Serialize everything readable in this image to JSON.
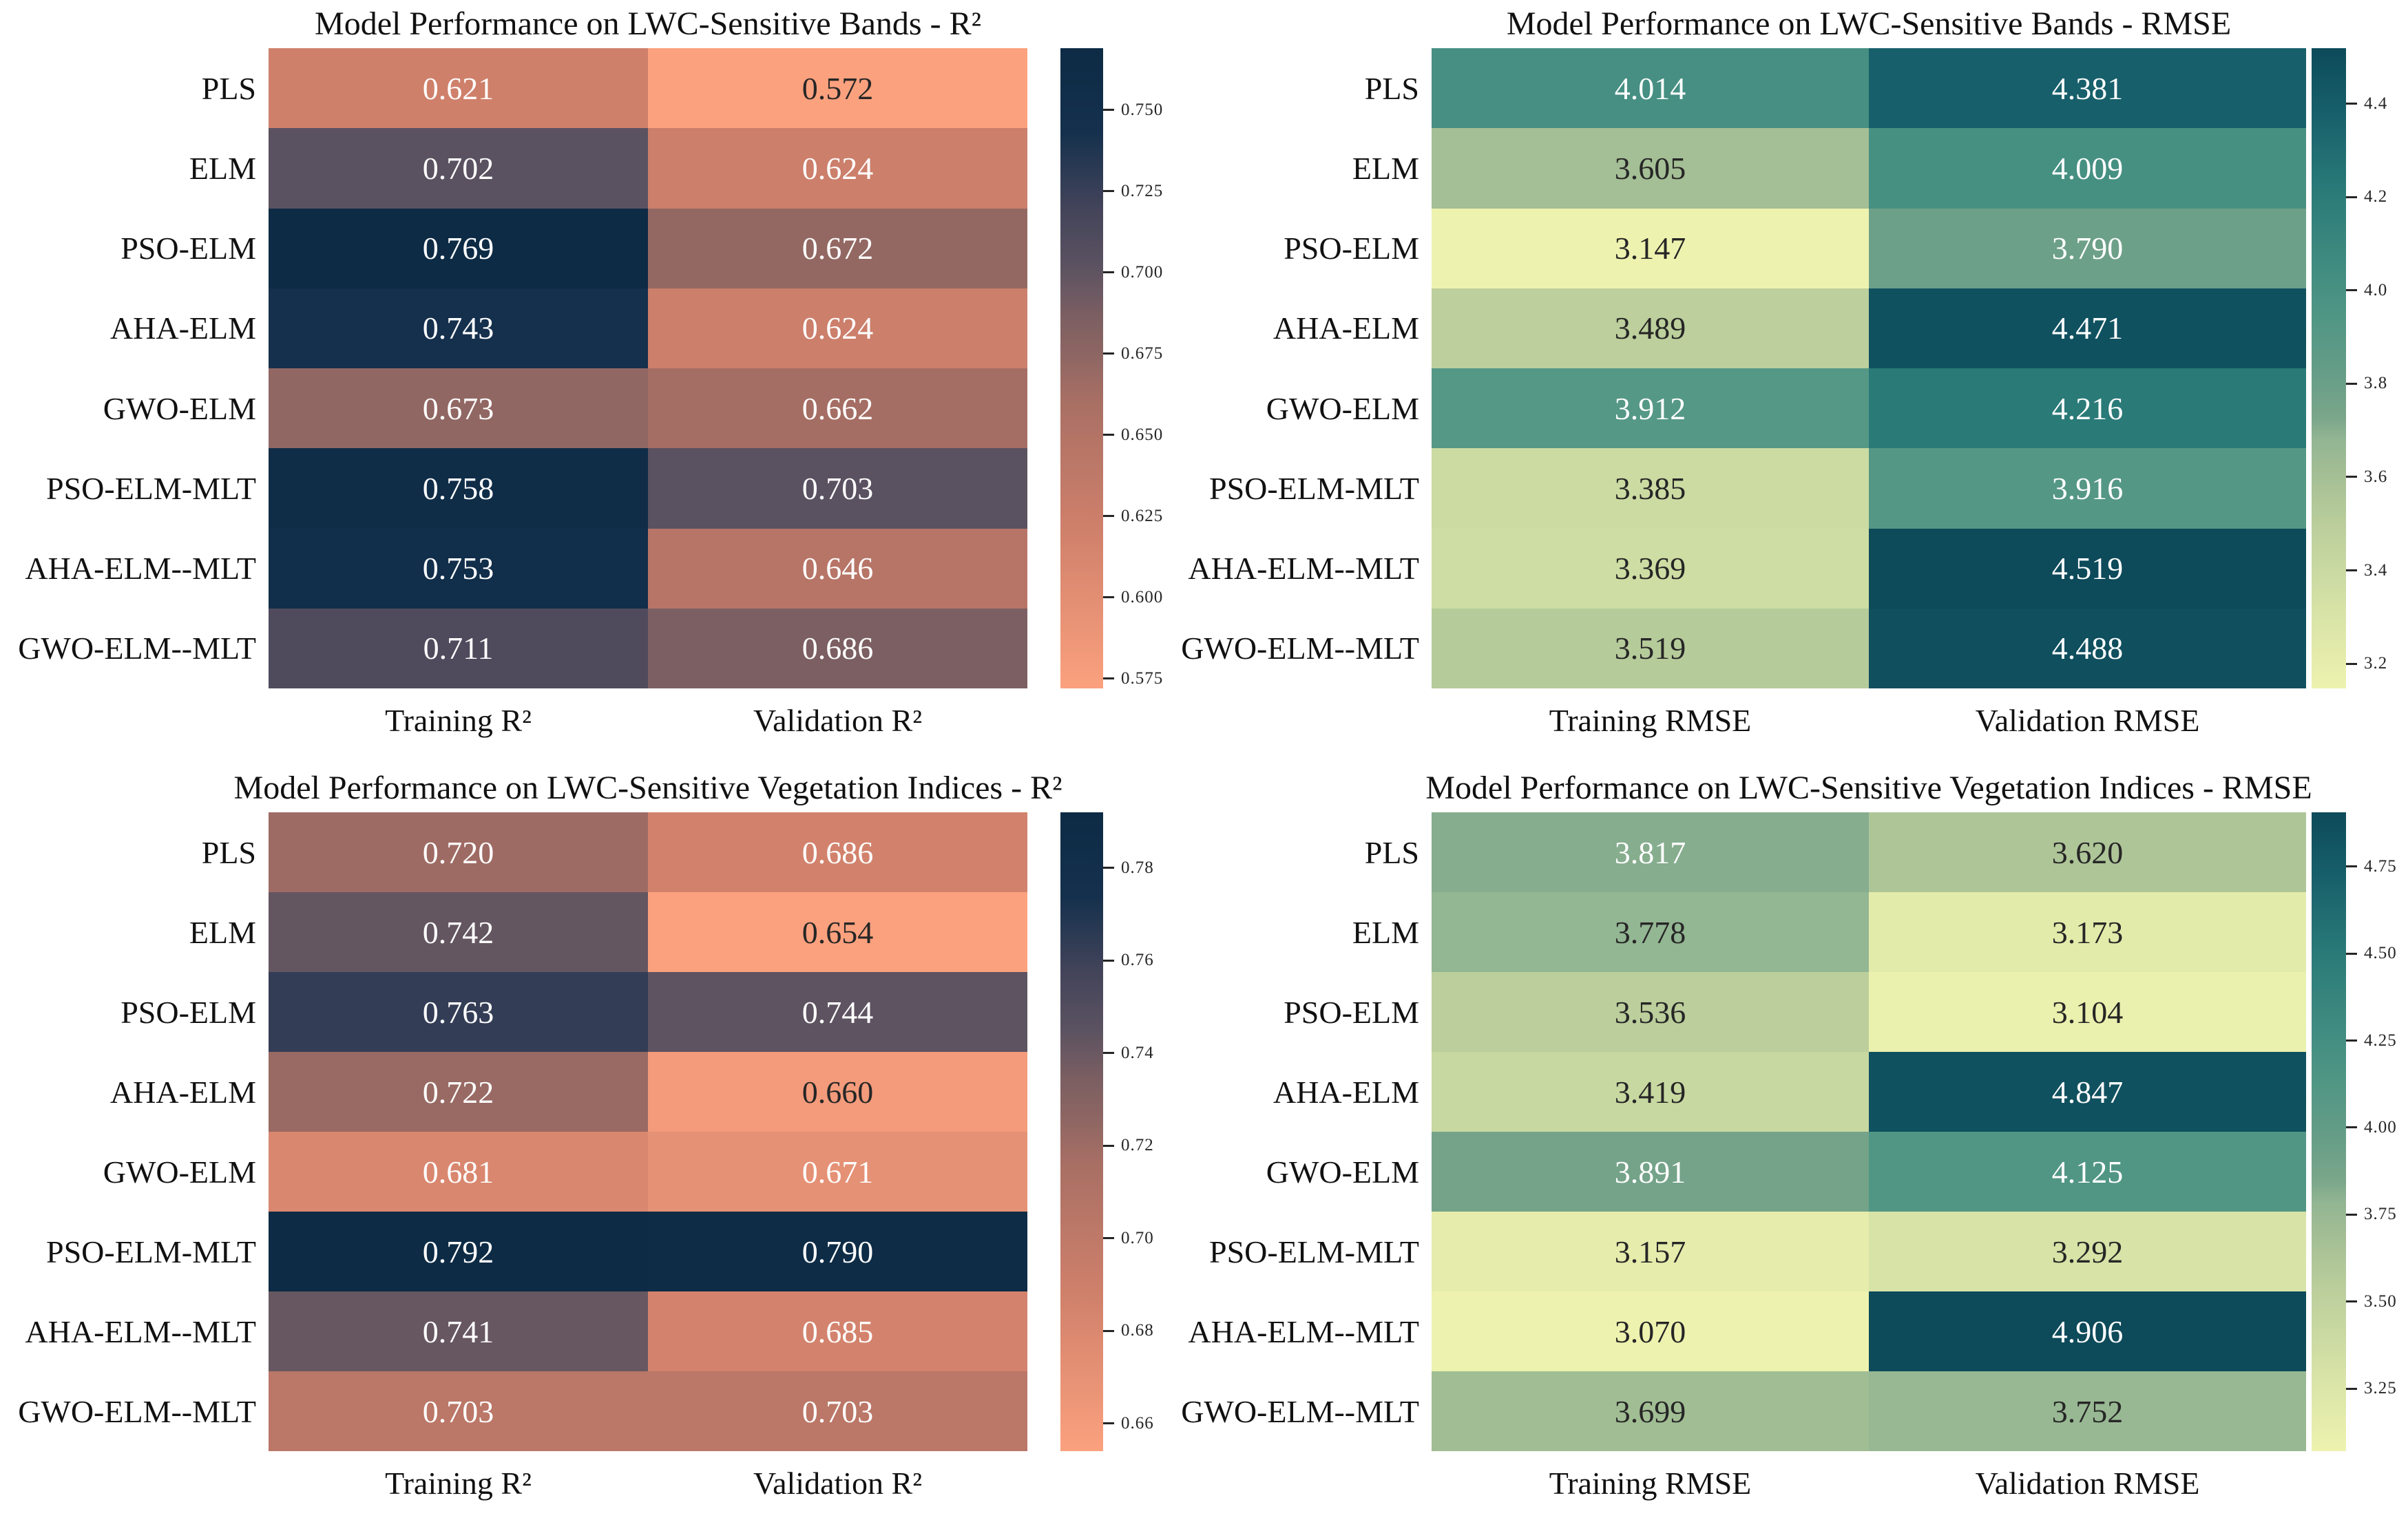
{
  "figure": {
    "background": "#FFFFFF",
    "text_color": "#111111"
  },
  "annotation": {
    "light_text": "#FFFFFF",
    "dark_text": "#262626",
    "luminance_threshold": 0.408
  },
  "colormaps": {
    "salmon_to_navy": [
      [
        0.0,
        "#FBA17E"
      ],
      [
        0.25,
        "#CF806B"
      ],
      [
        0.45,
        "#A86F64"
      ],
      [
        0.52,
        "#8E6663"
      ],
      [
        0.58,
        "#7C5F62"
      ],
      [
        0.66,
        "#5B5261"
      ],
      [
        0.75,
        "#43445A"
      ],
      [
        0.87,
        "#14304D"
      ],
      [
        1.0,
        "#0D2B45"
      ]
    ],
    "yellowgreen_to_teal": [
      [
        0.0,
        "#EEF2AF"
      ],
      [
        0.12,
        "#D7E3A7"
      ],
      [
        0.25,
        "#BCCF9C"
      ],
      [
        0.34,
        "#A2BD94"
      ],
      [
        0.39,
        "#92B593"
      ],
      [
        0.42,
        "#7CA78A"
      ],
      [
        0.5,
        "#639C87"
      ],
      [
        0.58,
        "#509684"
      ],
      [
        0.65,
        "#428D81"
      ],
      [
        0.78,
        "#2A7A78"
      ],
      [
        0.9,
        "#175F6B"
      ],
      [
        1.0,
        "#0D4A5A"
      ]
    ]
  },
  "chart_data": [
    {
      "type": "heatmap",
      "title": "Model Performance on LWC-Sensitive Bands - R²",
      "rows": [
        "PLS",
        "ELM",
        "PSO-ELM",
        "AHA-ELM",
        "GWO-ELM",
        "PSO-ELM-MLT",
        "AHA-ELM--MLT",
        "GWO-ELM--MLT"
      ],
      "columns": [
        "Training R²",
        "Validation R²"
      ],
      "values": [
        [
          0.621,
          0.572
        ],
        [
          0.702,
          0.624
        ],
        [
          0.769,
          0.672
        ],
        [
          0.743,
          0.624
        ],
        [
          0.673,
          0.662
        ],
        [
          0.758,
          0.703
        ],
        [
          0.753,
          0.646
        ],
        [
          0.711,
          0.686
        ]
      ],
      "value_decimals": 3,
      "colorbar": {
        "colormap": "salmon_to_navy",
        "vmin": 0.572,
        "vmax": 0.769,
        "ticks": [
          "0.750",
          "0.725",
          "0.700",
          "0.675",
          "0.650",
          "0.625",
          "0.600",
          "0.575"
        ]
      }
    },
    {
      "type": "heatmap",
      "title": "Model Performance on LWC-Sensitive Bands - RMSE",
      "rows": [
        "PLS",
        "ELM",
        "PSO-ELM",
        "AHA-ELM",
        "GWO-ELM",
        "PSO-ELM-MLT",
        "AHA-ELM--MLT",
        "GWO-ELM--MLT"
      ],
      "columns": [
        "Training RMSE",
        "Validation RMSE"
      ],
      "values": [
        [
          4.014,
          4.381
        ],
        [
          3.605,
          4.009
        ],
        [
          3.147,
          3.79
        ],
        [
          3.489,
          4.471
        ],
        [
          3.912,
          4.216
        ],
        [
          3.385,
          3.916
        ],
        [
          3.369,
          4.519
        ],
        [
          3.519,
          4.488
        ]
      ],
      "value_decimals": 3,
      "colorbar": {
        "colormap": "yellowgreen_to_teal",
        "vmin": 3.147,
        "vmax": 4.519,
        "ticks": [
          "4.4",
          "4.2",
          "4.0",
          "3.8",
          "3.6",
          "3.4",
          "3.2"
        ]
      }
    },
    {
      "type": "heatmap",
      "title": "Model Performance on LWC-Sensitive Vegetation Indices - R²",
      "rows": [
        "PLS",
        "ELM",
        "PSO-ELM",
        "AHA-ELM",
        "GWO-ELM",
        "PSO-ELM-MLT",
        "AHA-ELM--MLT",
        "GWO-ELM--MLT"
      ],
      "columns": [
        "Training R²",
        "Validation R²"
      ],
      "values": [
        [
          0.72,
          0.686
        ],
        [
          0.742,
          0.654
        ],
        [
          0.763,
          0.744
        ],
        [
          0.722,
          0.66
        ],
        [
          0.681,
          0.671
        ],
        [
          0.792,
          0.79
        ],
        [
          0.741,
          0.685
        ],
        [
          0.703,
          0.703
        ]
      ],
      "value_decimals": 3,
      "colorbar": {
        "colormap": "salmon_to_navy",
        "vmin": 0.654,
        "vmax": 0.792,
        "ticks": [
          "0.78",
          "0.76",
          "0.74",
          "0.72",
          "0.70",
          "0.68",
          "0.66"
        ]
      }
    },
    {
      "type": "heatmap",
      "title": "Model Performance on LWC-Sensitive Vegetation Indices - RMSE",
      "rows": [
        "PLS",
        "ELM",
        "PSO-ELM",
        "AHA-ELM",
        "GWO-ELM",
        "PSO-ELM-MLT",
        "AHA-ELM--MLT",
        "GWO-ELM--MLT"
      ],
      "columns": [
        "Training RMSE",
        "Validation RMSE"
      ],
      "values": [
        [
          3.817,
          3.62
        ],
        [
          3.778,
          3.173
        ],
        [
          3.536,
          3.104
        ],
        [
          3.419,
          4.847
        ],
        [
          3.891,
          4.125
        ],
        [
          3.157,
          3.292
        ],
        [
          3.07,
          4.906
        ],
        [
          3.699,
          3.752
        ]
      ],
      "value_decimals": 3,
      "colorbar": {
        "colormap": "yellowgreen_to_teal",
        "vmin": 3.07,
        "vmax": 4.906,
        "ticks": [
          "4.75",
          "4.50",
          "4.25",
          "4.00",
          "3.75",
          "3.50",
          "3.25"
        ]
      }
    }
  ]
}
